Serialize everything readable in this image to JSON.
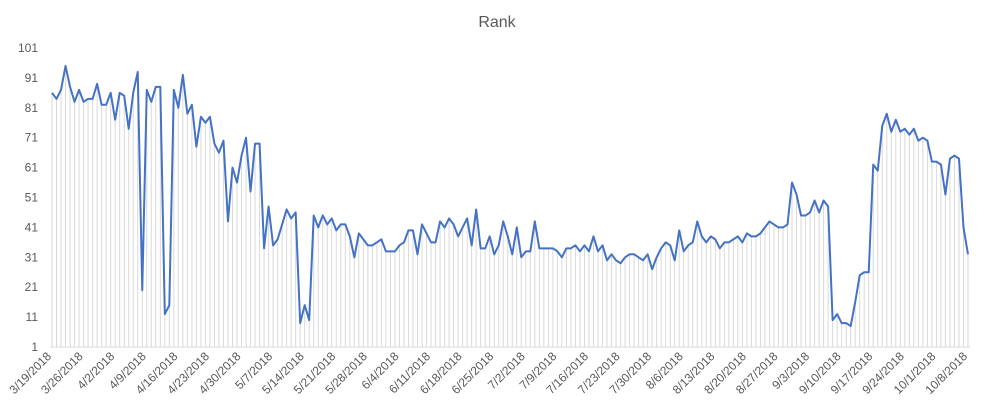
{
  "chart_data": {
    "type": "line",
    "title": "Rank",
    "xlabel": "",
    "ylabel": "",
    "ylim": [
      1,
      101
    ],
    "y_ticks": [
      1,
      11,
      21,
      31,
      41,
      51,
      61,
      71,
      81,
      91,
      101
    ],
    "x_start": "3/19/2018",
    "x_end": "10/9/2018",
    "x_tick_labels": [
      "3/19/2018",
      "3/26/2018",
      "4/2/2018",
      "4/9/2018",
      "4/16/2018",
      "4/23/2018",
      "4/30/2018",
      "5/7/2018",
      "5/14/2018",
      "5/21/2018",
      "5/28/2018",
      "6/4/2018",
      "6/11/2018",
      "6/18/2018",
      "6/25/2018",
      "7/2/2018",
      "7/9/2018",
      "7/16/2018",
      "7/23/2018",
      "7/30/2018",
      "8/6/2018",
      "8/13/2018",
      "8/20/2018",
      "8/27/2018",
      "9/3/2018",
      "9/10/2018",
      "9/17/2018",
      "9/24/2018",
      "10/1/2018",
      "10/8/2018"
    ],
    "grid": false,
    "legend": "none",
    "series_color": "#4472C4",
    "drop_line_color": "#D9D9D9",
    "values": [
      86,
      84,
      87,
      95,
      88,
      83,
      87,
      83,
      84,
      84,
      89,
      82,
      82,
      86,
      77,
      86,
      85,
      74,
      86,
      93,
      20,
      87,
      83,
      88,
      88,
      12,
      15,
      87,
      81,
      92,
      79,
      82,
      68,
      78,
      76,
      78,
      69,
      66,
      70,
      43,
      61,
      56,
      65,
      71,
      53,
      69,
      69,
      34,
      48,
      35,
      37,
      42,
      47,
      44,
      46,
      9,
      15,
      10,
      45,
      41,
      45,
      42,
      44,
      40,
      42,
      42,
      38,
      31,
      39,
      37,
      35,
      35,
      36,
      37,
      33,
      33,
      33,
      35,
      36,
      40,
      40,
      32,
      42,
      39,
      36,
      36,
      43,
      41,
      44,
      42,
      38,
      41,
      44,
      35,
      47,
      34,
      34,
      38,
      32,
      35,
      43,
      38,
      32,
      41,
      31,
      33,
      33,
      43,
      34,
      34,
      34,
      34,
      33,
      31,
      34,
      34,
      35,
      33,
      35,
      33,
      38,
      33,
      35,
      30,
      32,
      30,
      29,
      31,
      32,
      32,
      31,
      30,
      32,
      27,
      31,
      34,
      36,
      35,
      30,
      40,
      33,
      35,
      36,
      43,
      38,
      36,
      38,
      37,
      34,
      36,
      36,
      37,
      38,
      36,
      39,
      38,
      38,
      39,
      41,
      43,
      42,
      41,
      41,
      42,
      56,
      52,
      45,
      45,
      46,
      50,
      46,
      50,
      48,
      10,
      12,
      9,
      9,
      8,
      16,
      25,
      26,
      26,
      62,
      60,
      75,
      79,
      73,
      77,
      73,
      74,
      72,
      74,
      70,
      71,
      70,
      63,
      63,
      62,
      52,
      64,
      65,
      64,
      41,
      32
    ]
  }
}
